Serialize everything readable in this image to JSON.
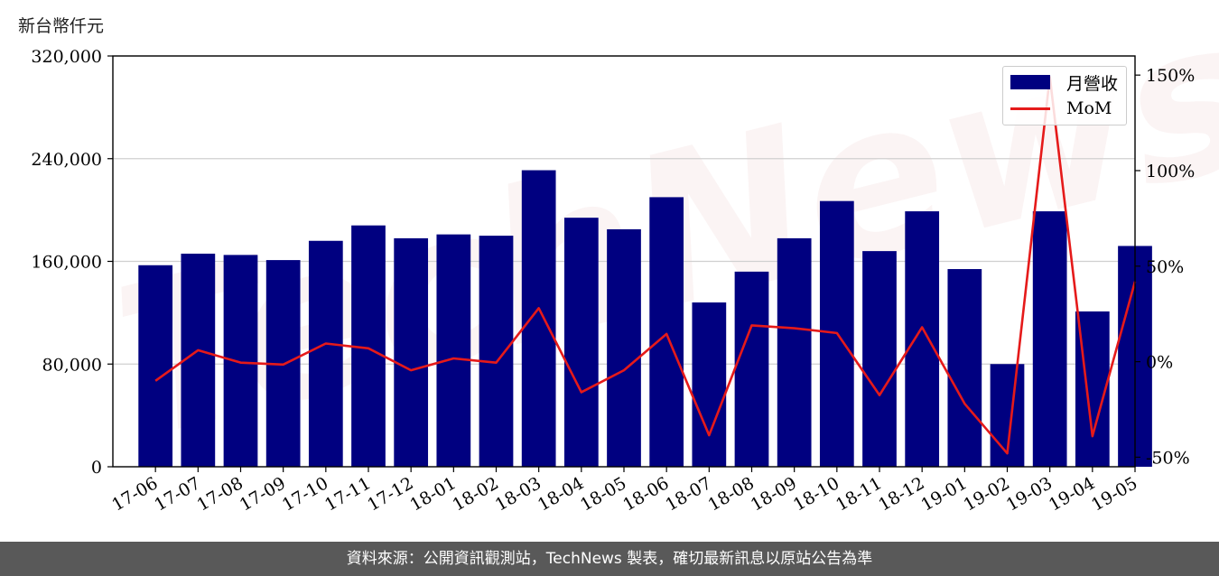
{
  "watermark": "TechNews",
  "unit_label": "新台幣仟元",
  "footer": "資料來源：公開資訊觀測站，TechNews 製表，確切最新訊息以原站公告為準",
  "legend": {
    "bar_label": "月營收",
    "line_label": "MoM"
  },
  "colors": {
    "bar": "#000080",
    "line": "#e51a1a",
    "footer_bg": "#595959"
  },
  "chart_data": {
    "type": "bar",
    "categories": [
      "17-06",
      "17-07",
      "17-08",
      "17-09",
      "17-10",
      "17-11",
      "17-12",
      "18-01",
      "18-02",
      "18-03",
      "18-04",
      "18-05",
      "18-06",
      "18-07",
      "18-08",
      "18-09",
      "18-10",
      "18-11",
      "18-12",
      "19-01",
      "19-02",
      "19-03",
      "19-04",
      "19-05"
    ],
    "series": [
      {
        "name": "月營收",
        "type": "bar",
        "axis": "left",
        "values": [
          157000,
          166000,
          165000,
          161000,
          176000,
          188000,
          178000,
          181000,
          180000,
          231000,
          194000,
          185000,
          210000,
          128000,
          152000,
          178000,
          207000,
          168000,
          199000,
          154000,
          80000,
          199000,
          121000,
          172000
        ]
      },
      {
        "name": "MoM",
        "type": "line",
        "axis": "right",
        "values": [
          -10,
          6,
          -0.5,
          -1.5,
          9.5,
          7,
          -4.5,
          1.7,
          -0.5,
          28,
          -16,
          -4.5,
          14.5,
          -38.5,
          19,
          17.5,
          15,
          -17.5,
          18,
          -22,
          -48,
          149,
          -39,
          42
        ]
      }
    ],
    "y_left": {
      "ylim": [
        0,
        320000
      ],
      "ticks": [
        0,
        80000,
        160000,
        240000,
        320000
      ],
      "tick_labels": [
        "0",
        "80,000",
        "160,000",
        "240,000",
        "320,000"
      ]
    },
    "y_right": {
      "ylim": [
        -55,
        160
      ],
      "ticks": [
        -50,
        0,
        50,
        100,
        150
      ],
      "tick_labels": [
        "-50%",
        "0%",
        "50%",
        "100%",
        "150%"
      ]
    },
    "grid": "horizontal",
    "legend_position": "top-right"
  }
}
